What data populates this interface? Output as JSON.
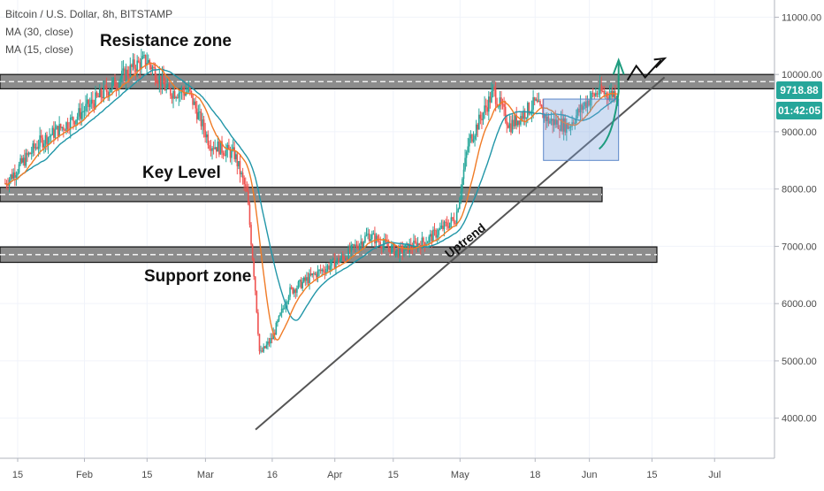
{
  "chart_data": {
    "type": "candlestick",
    "title": "Bitcoin / U.S. Dollar, 8h, BITSTAMP",
    "indicators": [
      {
        "name": "MA (30, close)",
        "color": "#2196a8"
      },
      {
        "name": "MA (15, close)",
        "color": "#f07b26"
      }
    ],
    "x_ticks": [
      "15",
      "Feb",
      "15",
      "Mar",
      "16",
      "Apr",
      "15",
      "May",
      "18",
      "Jun",
      "15",
      "Jul"
    ],
    "y_ticks": [
      "11000.00",
      "10000.00",
      "9000.00",
      "8000.00",
      "7000.00",
      "6000.00",
      "5000.00",
      "4000.00"
    ],
    "ylim": [
      3300,
      11300
    ],
    "price_series": {
      "x": [
        "Jan 12",
        "Jan 20",
        "Jan 28",
        "Feb 5",
        "Feb 12",
        "Feb 15",
        "Feb 20",
        "Feb 25",
        "Mar 1",
        "Mar 7",
        "Mar 10",
        "Mar 12",
        "Mar 13",
        "Mar 16",
        "Mar 20",
        "Mar 26",
        "Apr 2",
        "Apr 8",
        "Apr 15",
        "Apr 22",
        "Apr 29",
        "May 2",
        "May 8",
        "May 12",
        "May 18",
        "May 21",
        "May 26",
        "May 30",
        "Jun 2",
        "Jun 5",
        "Jun 7"
      ],
      "close": [
        8100,
        8800,
        9200,
        9700,
        10150,
        10250,
        9700,
        9700,
        8800,
        8600,
        7900,
        6200,
        5100,
        5400,
        6200,
        6500,
        6800,
        7200,
        6900,
        7100,
        7500,
        8800,
        9700,
        9100,
        9500,
        9200,
        9100,
        9500,
        9700,
        9650,
        9718.88
      ]
    },
    "last_price": "9718.88",
    "countdown": "01:42:05",
    "levels": [
      {
        "label": "Resistance zone",
        "low": 9750,
        "high": 10000
      },
      {
        "label": "Key Level",
        "low": 7780,
        "high": 8030
      },
      {
        "label": "Support zone",
        "low": 6720,
        "high": 6990
      }
    ],
    "trend_line_label": "Uptrend",
    "grid": true,
    "colors": {
      "up": "#26a69a",
      "down": "#ef5350",
      "zone": "#8c8c8c",
      "ma30": "#2196a8",
      "ma15": "#f07b26",
      "price_tag": "#26a69a",
      "timer_tag": "#26a69a"
    }
  }
}
